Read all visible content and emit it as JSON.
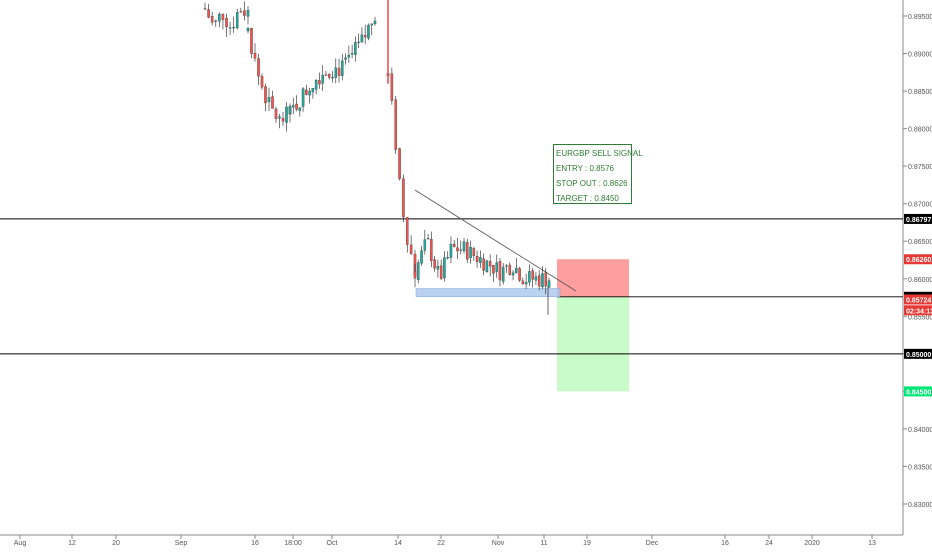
{
  "chart_data": {
    "type": "candlestick",
    "symbol": "EURGBP",
    "y_axis": {
      "range": [
        0.8266,
        0.8974
      ],
      "ticks": [
        "0.89500",
        "0.89000",
        "0.88500",
        "0.88000",
        "0.87500",
        "0.87000",
        "0.86500",
        "0.86000",
        "0.85500",
        "0.85000",
        "0.84500",
        "0.84000",
        "0.83500",
        "0.83000"
      ],
      "tick_values": [
        0.895,
        0.89,
        0.885,
        0.88,
        0.875,
        0.87,
        0.865,
        0.86,
        0.855,
        0.85,
        0.845,
        0.84,
        0.835,
        0.83
      ]
    },
    "x_axis": {
      "labels": [
        "Aug",
        "12",
        "20",
        "Sep",
        "16",
        "18:00",
        "Oct",
        "14",
        "22",
        "Nov",
        "11",
        "19",
        "Dec",
        "16",
        "24",
        "2020",
        "13"
      ]
    },
    "price_labels": [
      {
        "text": "0.86797",
        "value": 0.86797,
        "color": "#000000"
      },
      {
        "text": "0.86260",
        "value": 0.8626,
        "color": "#e53935"
      },
      {
        "text": "0.85760",
        "value": 0.8576,
        "color": "#000000"
      },
      {
        "text": "0.85724",
        "value": 0.85724,
        "color": "#e53935"
      },
      {
        "text": "02:34:13",
        "value": 0.8558,
        "color": "#e53935"
      },
      {
        "text": "0.85000",
        "value": 0.85,
        "color": "#000000"
      },
      {
        "text": "0.84500",
        "value": 0.845,
        "color": "#00e676"
      }
    ],
    "horizontal_lines": [
      0.86797,
      0.85
    ],
    "support_zone": [
      0.8576,
      0.8587
    ],
    "trade": {
      "entry": 0.8576,
      "stop": 0.8626,
      "target": 0.845
    },
    "annotation": [
      "EURGBP SELL SIGNAL",
      "ENTRY : 0.8576",
      "STOP OUT : 0.8626",
      "TARGET : 0.8450"
    ],
    "colors": {
      "up": "#26a69a",
      "down": "#ef5350",
      "wick": "#3d3d3d",
      "stop_zone": "#ff9e9e",
      "target_zone": "#c8fbc8",
      "support": "#a9c7ec",
      "annotation": "#2e7d32"
    },
    "segments": [
      {
        "x0": 205,
        "x1": 248,
        "anchors": [
          0.896,
          0.8935,
          0.8955,
          0.8935,
          0.896,
          0.8955
        ]
      },
      {
        "x0": 248,
        "x1": 290,
        "anchors": [
          0.893,
          0.887,
          0.883,
          0.881,
          0.882
        ]
      },
      {
        "x0": 290,
        "x1": 375,
        "anchors": [
          0.882,
          0.884,
          0.886,
          0.8875,
          0.888,
          0.888,
          0.89,
          0.892,
          0.8955
        ]
      },
      {
        "x0": 388,
        "x1": 415,
        "anchors": [
          0.887,
          0.881,
          0.874,
          0.868,
          0.864,
          0.8612
        ]
      },
      {
        "x0": 415,
        "x1": 549,
        "anchors": [
          0.861,
          0.865,
          0.86,
          0.864,
          0.864,
          0.863,
          0.862,
          0.861,
          0.862,
          0.86,
          0.86,
          0.86
        ]
      }
    ]
  }
}
